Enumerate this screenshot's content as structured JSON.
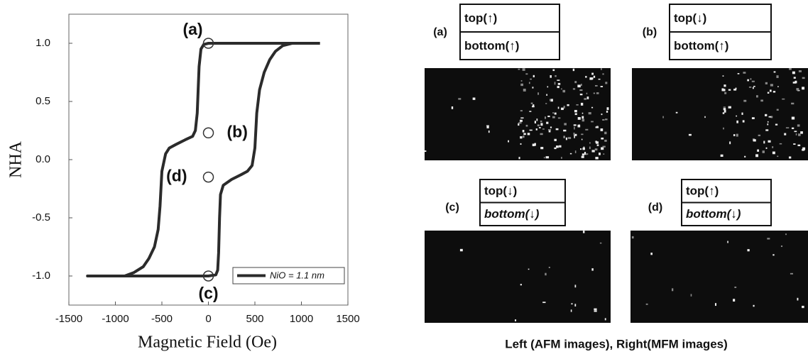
{
  "chart_data": {
    "type": "line",
    "x_label": "Magnetic Field (Oe)",
    "y_label": "NHA",
    "xlim": [
      -1500,
      1500
    ],
    "ylim": [
      -1.25,
      1.25
    ],
    "xticks": [
      -1500,
      -1000,
      -500,
      0,
      500,
      1000,
      1500
    ],
    "yticks": [
      {
        "value": 1,
        "label": "1.0"
      },
      0.5,
      {
        "value": 0,
        "label": "0.0"
      },
      -0.5,
      {
        "value": -1,
        "label": "-1.0"
      }
    ],
    "grid": false,
    "legend": "lower right",
    "series": [
      {
        "name": "NiO = 1.1 nm",
        "color": "#2b2b2b",
        "x": [
          1200,
          600,
          200,
          0,
          -50,
          -80,
          -100,
          -110,
          -120,
          -140,
          -170,
          -250,
          -350,
          -420,
          -460,
          -500,
          -520,
          -540,
          -580,
          -640,
          -700,
          -800,
          -900,
          -1000,
          -1300,
          -1000,
          -500,
          0,
          80,
          100,
          110,
          120,
          130,
          160,
          250,
          350,
          420,
          470,
          500,
          520,
          550,
          600,
          660,
          720,
          800,
          900,
          1200
        ],
        "values": [
          1.0,
          1.0,
          1.0,
          1.0,
          0.99,
          0.95,
          0.8,
          0.6,
          0.4,
          0.25,
          0.2,
          0.17,
          0.13,
          0.1,
          0.05,
          -0.1,
          -0.4,
          -0.6,
          -0.75,
          -0.85,
          -0.92,
          -0.97,
          -1.0,
          -1.0,
          -1.0,
          -1.0,
          -1.0,
          -1.0,
          -0.99,
          -0.95,
          -0.8,
          -0.5,
          -0.3,
          -0.22,
          -0.17,
          -0.13,
          -0.1,
          -0.05,
          0.1,
          0.4,
          0.6,
          0.75,
          0.86,
          0.93,
          0.98,
          1.0,
          1.0
        ]
      }
    ],
    "annotations": [
      {
        "text": "(a)",
        "x": 0,
        "y": 1.0
      },
      {
        "text": "(b)",
        "x": 0,
        "y": 0.23
      },
      {
        "text": "(c)",
        "x": 0,
        "y": -1.0
      },
      {
        "text": "(d)",
        "x": 0,
        "y": -0.15
      }
    ]
  },
  "figure": {
    "panels": [
      {
        "label": "(a)",
        "top": "top(↑)",
        "bottom": "bottom(↑)"
      },
      {
        "label": "(b)",
        "top": "top(↓)",
        "bottom": "bottom(↑)"
      },
      {
        "label": "(c)",
        "top": "top(↓)",
        "bottom": "bottom(↓)"
      },
      {
        "label": "(d)",
        "top": "top(↑)",
        "bottom": "bottom(↓)"
      }
    ],
    "caption": "Left (AFM images), Right(MFM images)"
  }
}
